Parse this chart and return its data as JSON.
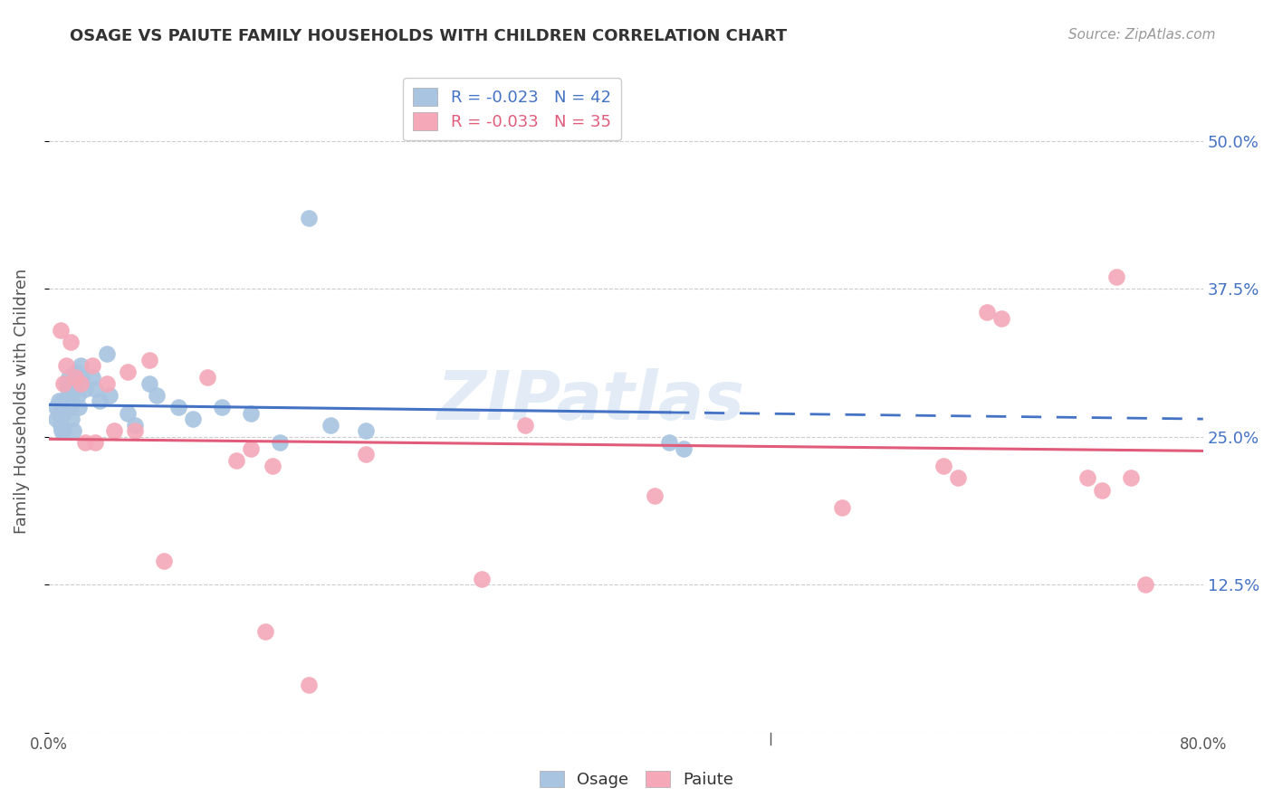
{
  "title": "OSAGE VS PAIUTE FAMILY HOUSEHOLDS WITH CHILDREN CORRELATION CHART",
  "source": "Source: ZipAtlas.com",
  "ylabel": "Family Households with Children",
  "xmin": 0.0,
  "xmax": 0.8,
  "ymin": 0.0,
  "ymax": 0.56,
  "yticks": [
    0.0,
    0.125,
    0.25,
    0.375,
    0.5
  ],
  "ytick_labels": [
    "",
    "12.5%",
    "25.0%",
    "37.5%",
    "50.0%"
  ],
  "xticks": [
    0.0,
    0.1,
    0.2,
    0.3,
    0.4,
    0.5,
    0.6,
    0.7,
    0.8
  ],
  "xtick_labels": [
    "0.0%",
    "",
    "",
    "",
    "",
    "",
    "",
    "",
    "80.0%"
  ],
  "osage_label": "Osage",
  "paiute_label": "Paiute",
  "osage_color": "#a8c4e0",
  "paiute_color": "#f4a8b8",
  "osage_line_color": "#4472c4",
  "paiute_line_color": "#e05c7a",
  "legend_osage": "R = -0.023   N = 42",
  "legend_paiute": "R = -0.033   N = 35",
  "watermark": "ZIPatlas",
  "osage_x": [
    0.005,
    0.005,
    0.007,
    0.007,
    0.008,
    0.009,
    0.01,
    0.01,
    0.01,
    0.012,
    0.013,
    0.014,
    0.015,
    0.015,
    0.016,
    0.017,
    0.018,
    0.019,
    0.02,
    0.021,
    0.022,
    0.023,
    0.025,
    0.03,
    0.032,
    0.035,
    0.04,
    0.042,
    0.055,
    0.06,
    0.07,
    0.075,
    0.09,
    0.1,
    0.12,
    0.14,
    0.16,
    0.18,
    0.195,
    0.22,
    0.43,
    0.44
  ],
  "osage_y": [
    0.275,
    0.265,
    0.28,
    0.27,
    0.26,
    0.255,
    0.28,
    0.27,
    0.255,
    0.295,
    0.29,
    0.3,
    0.285,
    0.275,
    0.265,
    0.255,
    0.305,
    0.295,
    0.285,
    0.275,
    0.31,
    0.3,
    0.29,
    0.3,
    0.29,
    0.28,
    0.32,
    0.285,
    0.27,
    0.26,
    0.295,
    0.285,
    0.275,
    0.265,
    0.275,
    0.27,
    0.245,
    0.435,
    0.26,
    0.255,
    0.245,
    0.24
  ],
  "paiute_x": [
    0.008,
    0.01,
    0.012,
    0.015,
    0.018,
    0.022,
    0.025,
    0.03,
    0.032,
    0.04,
    0.045,
    0.055,
    0.06,
    0.07,
    0.08,
    0.11,
    0.13,
    0.14,
    0.15,
    0.155,
    0.18,
    0.22,
    0.3,
    0.33,
    0.42,
    0.55,
    0.62,
    0.63,
    0.65,
    0.66,
    0.72,
    0.73,
    0.74,
    0.75,
    0.76
  ],
  "paiute_y": [
    0.34,
    0.295,
    0.31,
    0.33,
    0.3,
    0.295,
    0.245,
    0.31,
    0.245,
    0.295,
    0.255,
    0.305,
    0.255,
    0.315,
    0.145,
    0.3,
    0.23,
    0.24,
    0.085,
    0.225,
    0.04,
    0.235,
    0.13,
    0.26,
    0.2,
    0.19,
    0.225,
    0.215,
    0.355,
    0.35,
    0.215,
    0.205,
    0.385,
    0.215,
    0.125
  ],
  "osage_trend_x": [
    0.0,
    0.8
  ],
  "osage_trend_y_start": 0.277,
  "osage_trend_y_end": 0.265,
  "osage_trend_solid_end": 0.43,
  "paiute_trend_y_start": 0.248,
  "paiute_trend_y_end": 0.238
}
